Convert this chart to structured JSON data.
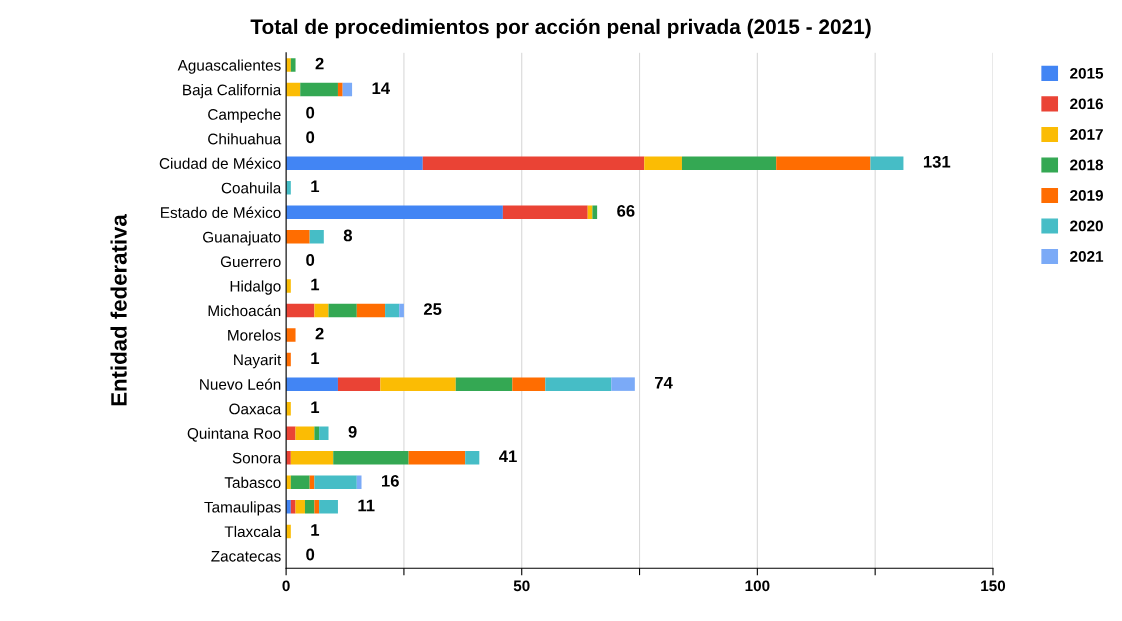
{
  "chart_data": {
    "type": "bar",
    "orientation": "horizontal",
    "stacked": true,
    "title": "Total de procedimientos por acción penal privada (2015 - 2021)",
    "ylabel": "Entidad federativa",
    "categories": [
      "Aguascalientes",
      "Baja California",
      "Campeche",
      "Chihuahua",
      "Ciudad de México",
      "Coahuila",
      "Estado de México",
      "Guanajuato",
      "Guerrero",
      "Hidalgo",
      "Michoacán",
      "Morelos",
      "Nayarit",
      "Nuevo León",
      "Oaxaca",
      "Quintana Roo",
      "Sonora",
      "Tabasco",
      "Tamaulipas",
      "Tlaxcala",
      "Zacatecas"
    ],
    "series": [
      {
        "name": "2015",
        "color": "#4285f4",
        "values": [
          0,
          0,
          0,
          0,
          29,
          0,
          46,
          0,
          0,
          0,
          0,
          0,
          0,
          11,
          0,
          0,
          0,
          0,
          1,
          0,
          0
        ]
      },
      {
        "name": "2016",
        "color": "#ea4335",
        "values": [
          0,
          0,
          0,
          0,
          47,
          0,
          18,
          0,
          0,
          0,
          6,
          0,
          0,
          9,
          0,
          2,
          1,
          0,
          1,
          0,
          0
        ]
      },
      {
        "name": "2017",
        "color": "#fbbc04",
        "values": [
          1,
          3,
          0,
          0,
          8,
          0,
          1,
          0,
          0,
          1,
          3,
          0,
          0,
          16,
          1,
          4,
          9,
          1,
          2,
          1,
          0
        ]
      },
      {
        "name": "2018",
        "color": "#34a853",
        "values": [
          1,
          8,
          0,
          0,
          20,
          0,
          1,
          0,
          0,
          0,
          6,
          0,
          0,
          12,
          0,
          1,
          16,
          4,
          2,
          0,
          0
        ]
      },
      {
        "name": "2019",
        "color": "#ff6d01",
        "values": [
          0,
          1,
          0,
          0,
          20,
          0,
          0,
          5,
          0,
          0,
          6,
          2,
          1,
          7,
          0,
          0,
          12,
          1,
          1,
          0,
          0
        ]
      },
      {
        "name": "2020",
        "color": "#46bdc6",
        "values": [
          0,
          0,
          0,
          0,
          7,
          1,
          0,
          3,
          0,
          0,
          3,
          0,
          0,
          14,
          0,
          2,
          3,
          9,
          4,
          0,
          0
        ]
      },
      {
        "name": "2021",
        "color": "#7baaf7",
        "values": [
          0,
          2,
          0,
          0,
          0,
          0,
          0,
          0,
          0,
          0,
          1,
          0,
          0,
          5,
          0,
          0,
          0,
          1,
          0,
          0,
          0
        ]
      }
    ],
    "totals": [
      "2",
      "14",
      "0",
      "0",
      "131",
      "1",
      "66",
      "8",
      "0",
      "1",
      "25",
      "2",
      "1",
      "74",
      "1",
      "9",
      "41",
      "16",
      "11",
      "1",
      "0"
    ],
    "xlim": [
      0,
      150
    ],
    "xticks": [
      0,
      {
        "value": 25,
        "label": null
      },
      50,
      {
        "value": 75,
        "label": null
      },
      100,
      {
        "value": 125,
        "label": null
      },
      150
    ],
    "grid": "x",
    "legend": "top right"
  }
}
